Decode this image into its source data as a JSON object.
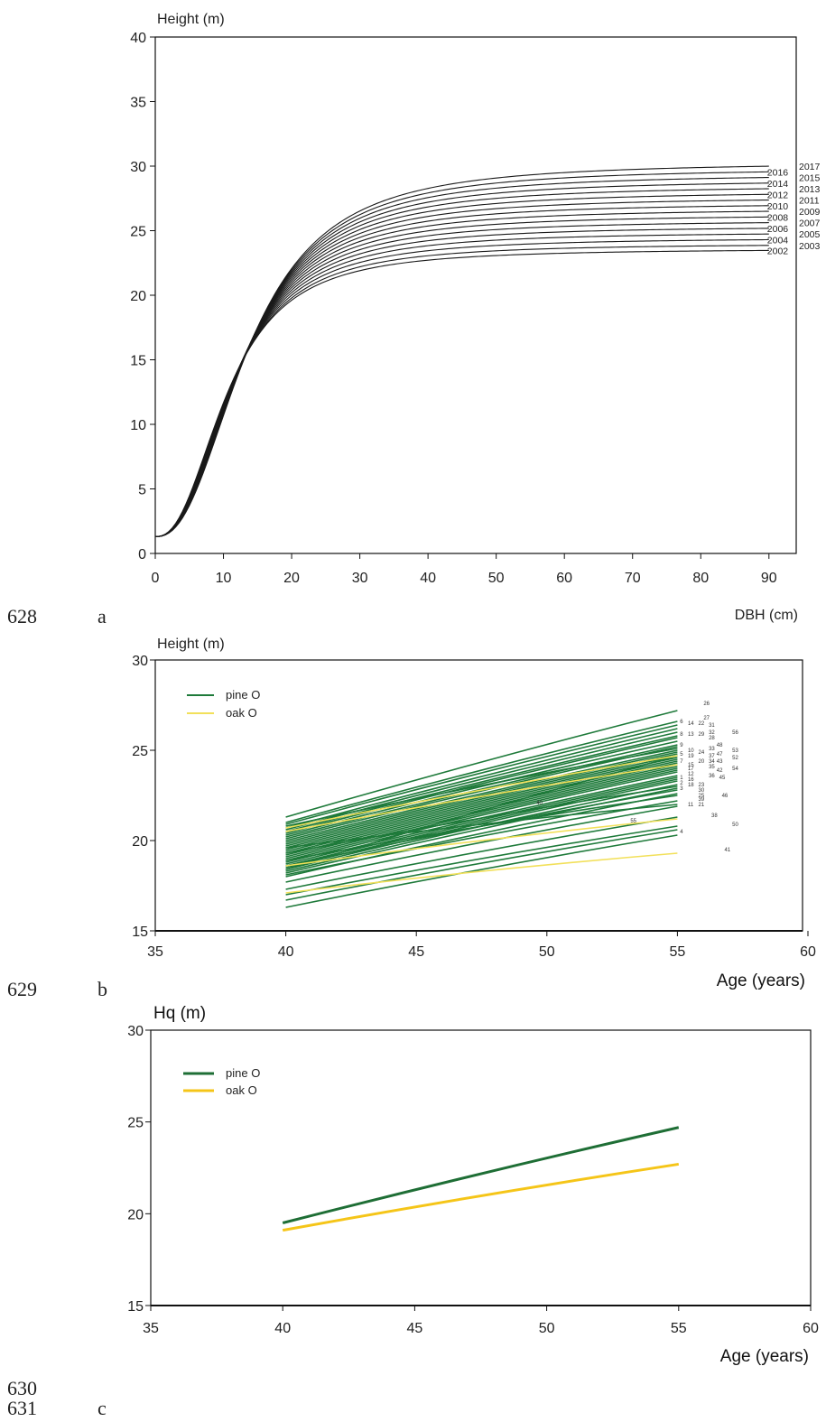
{
  "line_numbers": [
    "628",
    "629",
    "630",
    "631"
  ],
  "chart_data": [
    {
      "panel": "a",
      "type": "line",
      "ylabel": "Height (m)",
      "xlabel": "DBH (cm)",
      "xlim": [
        0,
        94
      ],
      "ylim": [
        0,
        40
      ],
      "xticks": [
        "0",
        "10",
        "20",
        "30",
        "40",
        "50",
        "60",
        "70",
        "80",
        "90"
      ],
      "yticks": [
        "0",
        "5",
        "10",
        "15",
        "20",
        "25",
        "30",
        "35",
        "40"
      ],
      "model": {
        "base": 1.3,
        "exponent": 2.4
      },
      "series": [
        {
          "name": "2002",
          "asymptote": 23.6,
          "k": 10.6
        },
        {
          "name": "2003",
          "asymptote": 24.0,
          "k": 10.8
        },
        {
          "name": "2004",
          "asymptote": 24.45,
          "k": 11.0
        },
        {
          "name": "2005",
          "asymptote": 24.9,
          "k": 11.2
        },
        {
          "name": "2006",
          "asymptote": 25.35,
          "k": 11.4
        },
        {
          "name": "2007",
          "asymptote": 25.8,
          "k": 11.6
        },
        {
          "name": "2008",
          "asymptote": 26.25,
          "k": 11.8
        },
        {
          "name": "2009",
          "asymptote": 26.7,
          "k": 12.0
        },
        {
          "name": "2010",
          "asymptote": 27.15,
          "k": 12.2
        },
        {
          "name": "2011",
          "asymptote": 27.6,
          "k": 12.4
        },
        {
          "name": "2012",
          "asymptote": 28.05,
          "k": 12.6
        },
        {
          "name": "2013",
          "asymptote": 28.5,
          "k": 12.8
        },
        {
          "name": "2014",
          "asymptote": 28.95,
          "k": 13.0
        },
        {
          "name": "2015",
          "asymptote": 29.4,
          "k": 13.2
        },
        {
          "name": "2016",
          "asymptote": 29.85,
          "k": 13.4
        },
        {
          "name": "2017",
          "asymptote": 30.3,
          "k": 13.6
        }
      ],
      "curve_labels_left": [
        "2016",
        "2014",
        "2012",
        "2010",
        "2008",
        "2006",
        "2004",
        "2002"
      ],
      "curve_labels_right": [
        "2017",
        "2015",
        "2013",
        "2011",
        "2009",
        "2007",
        "2005",
        "2003"
      ]
    },
    {
      "panel": "b",
      "type": "line",
      "ylabel": "Height (m)",
      "xlabel": "Age (years)",
      "xlim": [
        35,
        60
      ],
      "ylim": [
        15,
        30
      ],
      "xticks": [
        "35",
        "40",
        "45",
        "50",
        "55",
        "60"
      ],
      "yticks": [
        "15",
        "20",
        "25",
        "30"
      ],
      "legend": [
        {
          "label": "pine O",
          "color": "#1e7a3a"
        },
        {
          "label": "oak O",
          "color": "#f2e05a"
        }
      ],
      "pine_lines": [
        [
          21.3,
          27.2
        ],
        [
          21.0,
          26.6
        ],
        [
          20.9,
          26.4
        ],
        [
          20.7,
          26.2
        ],
        [
          20.6,
          26.0
        ],
        [
          20.5,
          25.8
        ],
        [
          20.4,
          25.7
        ],
        [
          20.3,
          25.5
        ],
        [
          20.2,
          25.3
        ],
        [
          20.1,
          25.2
        ],
        [
          20.0,
          25.0
        ],
        [
          19.9,
          24.9
        ],
        [
          19.8,
          24.8
        ],
        [
          19.7,
          24.7
        ],
        [
          19.6,
          24.6
        ],
        [
          19.5,
          24.5
        ],
        [
          19.4,
          24.4
        ],
        [
          19.3,
          24.3
        ],
        [
          19.2,
          24.2
        ],
        [
          19.1,
          24.1
        ],
        [
          19.0,
          24.0
        ],
        [
          18.9,
          23.9
        ],
        [
          18.8,
          23.8
        ],
        [
          18.7,
          23.6
        ],
        [
          18.6,
          23.5
        ],
        [
          18.5,
          23.4
        ],
        [
          18.4,
          23.3
        ],
        [
          18.3,
          23.1
        ],
        [
          18.2,
          22.9
        ],
        [
          18.6,
          22.8
        ],
        [
          18.9,
          22.5
        ],
        [
          18.1,
          22.2
        ],
        [
          19.6,
          22.0
        ],
        [
          17.7,
          21.9
        ],
        [
          17.3,
          21.3
        ],
        [
          17.0,
          20.8
        ],
        [
          16.7,
          20.6
        ],
        [
          16.3,
          20.3
        ],
        [
          18.0,
          22.6
        ],
        [
          19.3,
          23.0
        ],
        [
          20.8,
          25.1
        ],
        [
          18.4,
          24.7
        ]
      ],
      "oak_lines": [
        [
          20.7,
          24.7
        ],
        [
          20.5,
          24.2
        ],
        [
          18.6,
          21.2
        ],
        [
          17.1,
          19.3
        ]
      ],
      "right_labels": [
        {
          "text": "26",
          "x": 56.0,
          "y": 27.5
        },
        {
          "text": "27",
          "x": 56.0,
          "y": 26.7
        },
        {
          "text": "6",
          "x": 55.1,
          "y": 26.5
        },
        {
          "text": "14",
          "x": 55.4,
          "y": 26.4
        },
        {
          "text": "22",
          "x": 55.8,
          "y": 26.4
        },
        {
          "text": "31",
          "x": 56.2,
          "y": 26.3
        },
        {
          "text": "8",
          "x": 55.1,
          "y": 25.8
        },
        {
          "text": "13",
          "x": 55.4,
          "y": 25.8
        },
        {
          "text": "29",
          "x": 55.8,
          "y": 25.8
        },
        {
          "text": "32",
          "x": 56.2,
          "y": 25.9
        },
        {
          "text": "56",
          "x": 57.1,
          "y": 25.9
        },
        {
          "text": "28",
          "x": 56.2,
          "y": 25.6
        },
        {
          "text": "9",
          "x": 55.1,
          "y": 25.2
        },
        {
          "text": "48",
          "x": 56.5,
          "y": 25.2
        },
        {
          "text": "10",
          "x": 55.4,
          "y": 24.9
        },
        {
          "text": "24",
          "x": 55.8,
          "y": 24.8
        },
        {
          "text": "33",
          "x": 56.2,
          "y": 25.0
        },
        {
          "text": "53",
          "x": 57.1,
          "y": 24.9
        },
        {
          "text": "5",
          "x": 55.1,
          "y": 24.7
        },
        {
          "text": "19",
          "x": 55.4,
          "y": 24.6
        },
        {
          "text": "37",
          "x": 56.2,
          "y": 24.6
        },
        {
          "text": "47",
          "x": 56.5,
          "y": 24.7
        },
        {
          "text": "52",
          "x": 57.1,
          "y": 24.5
        },
        {
          "text": "7",
          "x": 55.1,
          "y": 24.3
        },
        {
          "text": "20",
          "x": 55.8,
          "y": 24.3
        },
        {
          "text": "34",
          "x": 56.2,
          "y": 24.3
        },
        {
          "text": "43",
          "x": 56.5,
          "y": 24.3
        },
        {
          "text": "15",
          "x": 55.4,
          "y": 24.1
        },
        {
          "text": "17",
          "x": 55.4,
          "y": 23.9
        },
        {
          "text": "35",
          "x": 56.2,
          "y": 24.0
        },
        {
          "text": "42",
          "x": 56.5,
          "y": 23.8
        },
        {
          "text": "54",
          "x": 57.1,
          "y": 23.9
        },
        {
          "text": "12",
          "x": 55.4,
          "y": 23.6
        },
        {
          "text": "36",
          "x": 56.2,
          "y": 23.5
        },
        {
          "text": "45",
          "x": 56.6,
          "y": 23.4
        },
        {
          "text": "1",
          "x": 55.1,
          "y": 23.4
        },
        {
          "text": "16",
          "x": 55.4,
          "y": 23.3
        },
        {
          "text": "2",
          "x": 55.1,
          "y": 23.1
        },
        {
          "text": "18",
          "x": 55.4,
          "y": 23.0
        },
        {
          "text": "23",
          "x": 55.8,
          "y": 23.0
        },
        {
          "text": "3",
          "x": 55.1,
          "y": 22.8
        },
        {
          "text": "30",
          "x": 55.8,
          "y": 22.7
        },
        {
          "text": "25",
          "x": 55.8,
          "y": 22.4
        },
        {
          "text": "39",
          "x": 55.8,
          "y": 22.2
        },
        {
          "text": "46",
          "x": 56.7,
          "y": 22.4
        },
        {
          "text": "11",
          "x": 55.4,
          "y": 21.9
        },
        {
          "text": "21",
          "x": 55.8,
          "y": 21.9
        },
        {
          "text": "38",
          "x": 56.3,
          "y": 21.3
        },
        {
          "text": "50",
          "x": 57.1,
          "y": 20.8
        },
        {
          "text": "4",
          "x": 55.1,
          "y": 20.4
        },
        {
          "text": "41",
          "x": 56.8,
          "y": 19.4
        },
        {
          "text": "40",
          "x": 49.6,
          "y": 22.0
        },
        {
          "text": "55",
          "x": 53.2,
          "y": 21.0
        }
      ]
    },
    {
      "panel": "c",
      "type": "line",
      "ylabel": "Hq (m)",
      "xlabel": "Age (years)",
      "xlim": [
        35,
        60
      ],
      "ylim": [
        15,
        30
      ],
      "xticks": [
        "35",
        "40",
        "45",
        "50",
        "55",
        "60"
      ],
      "yticks": [
        "15",
        "20",
        "25",
        "30"
      ],
      "legend": [
        {
          "label": "pine O",
          "color": "#1e6e35"
        },
        {
          "label": "oak O",
          "color": "#f5c518"
        }
      ],
      "series": [
        {
          "name": "pine O",
          "x": [
            40,
            55
          ],
          "y": [
            19.5,
            24.7
          ]
        },
        {
          "name": "oak O",
          "x": [
            40,
            55
          ],
          "y": [
            19.1,
            22.7
          ]
        }
      ]
    }
  ]
}
